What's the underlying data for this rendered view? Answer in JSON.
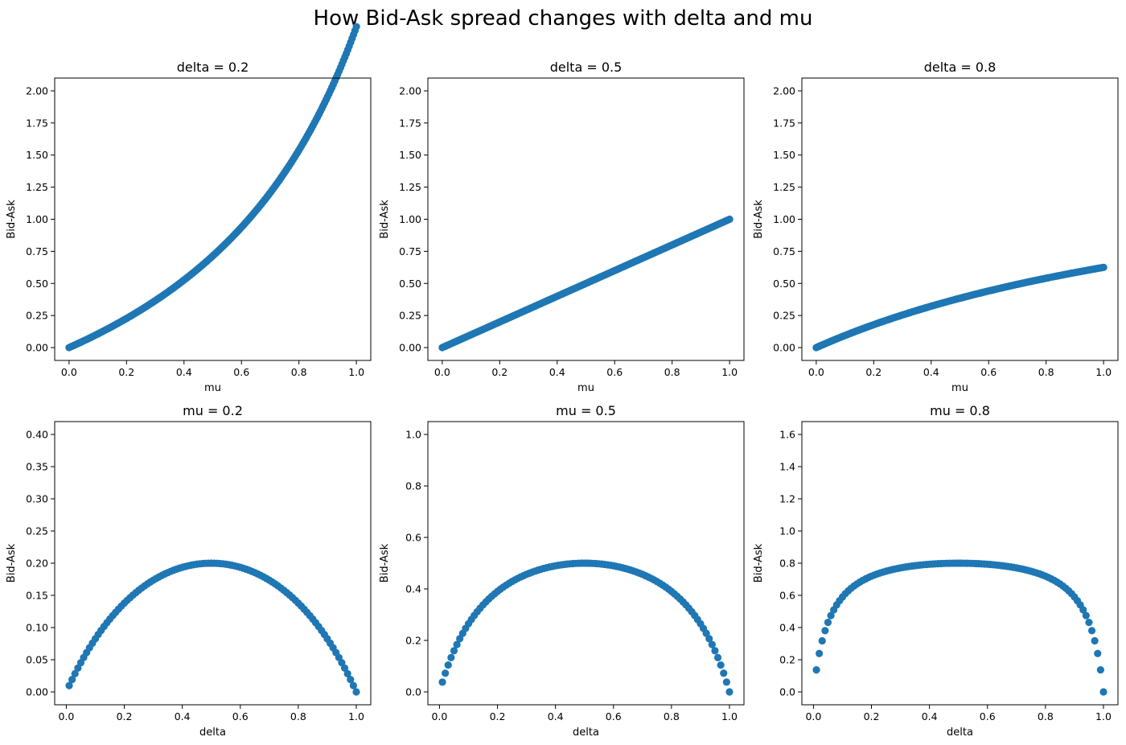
{
  "suptitle": "How Bid-Ask spread changes with delta and mu",
  "point_color": "#1f77b4",
  "chart_data": [
    {
      "type": "scatter",
      "title": "delta = 0.2",
      "xlabel": "mu",
      "ylabel": "Bid-Ask",
      "formula": "mu / (1 - mu*(1 - 2*delta))",
      "param": 0.2,
      "var": "mu",
      "x_range": [
        0,
        1
      ],
      "n_points": 200,
      "xlim": [
        -0.05,
        1.05
      ],
      "ylim": [
        -0.1,
        2.1
      ],
      "xticks": [
        0.0,
        0.2,
        0.4,
        0.6,
        0.8,
        1.0
      ],
      "xtick_labels": [
        "0.0",
        "0.2",
        "0.4",
        "0.6",
        "0.8",
        "1.0"
      ],
      "yticks": [
        0.0,
        0.25,
        0.5,
        0.75,
        1.0,
        1.25,
        1.5,
        1.75,
        2.0
      ],
      "ytick_labels": [
        "0.00",
        "0.25",
        "0.50",
        "0.75",
        "1.00",
        "1.25",
        "1.50",
        "1.75",
        "2.00"
      ]
    },
    {
      "type": "scatter",
      "title": "delta = 0.5",
      "xlabel": "mu",
      "ylabel": "Bid-Ask",
      "formula": "mu / (1 - mu*(1 - 2*delta))",
      "param": 0.5,
      "var": "mu",
      "x_range": [
        0,
        1
      ],
      "n_points": 200,
      "xlim": [
        -0.05,
        1.05
      ],
      "ylim": [
        -0.1,
        2.1
      ],
      "xticks": [
        0.0,
        0.2,
        0.4,
        0.6,
        0.8,
        1.0
      ],
      "xtick_labels": [
        "0.0",
        "0.2",
        "0.4",
        "0.6",
        "0.8",
        "1.0"
      ],
      "yticks": [
        0.0,
        0.25,
        0.5,
        0.75,
        1.0,
        1.25,
        1.5,
        1.75,
        2.0
      ],
      "ytick_labels": [
        "0.00",
        "0.25",
        "0.50",
        "0.75",
        "1.00",
        "1.25",
        "1.50",
        "1.75",
        "2.00"
      ]
    },
    {
      "type": "scatter",
      "title": "delta = 0.8",
      "xlabel": "mu",
      "ylabel": "Bid-Ask",
      "formula": "mu / (1 - mu*(1 - 2*delta))",
      "param": 0.8,
      "var": "mu",
      "x_range": [
        0,
        1
      ],
      "n_points": 200,
      "xlim": [
        -0.05,
        1.05
      ],
      "ylim": [
        -0.1,
        2.1
      ],
      "xticks": [
        0.0,
        0.2,
        0.4,
        0.6,
        0.8,
        1.0
      ],
      "xtick_labels": [
        "0.0",
        "0.2",
        "0.4",
        "0.6",
        "0.8",
        "1.0"
      ],
      "yticks": [
        0.0,
        0.25,
        0.5,
        0.75,
        1.0,
        1.25,
        1.5,
        1.75,
        2.0
      ],
      "ytick_labels": [
        "0.00",
        "0.25",
        "0.50",
        "0.75",
        "1.00",
        "1.25",
        "1.50",
        "1.75",
        "2.00"
      ]
    },
    {
      "type": "scatter",
      "title": "mu = 0.2",
      "xlabel": "delta",
      "ylabel": "Bid-Ask",
      "formula": "4*mu*delta*(1 - delta) / (1 - mu*(1 - 2*delta)^2)",
      "param": 0.2,
      "var": "delta",
      "x_range": [
        0.01,
        1.0
      ],
      "n_points": 100,
      "xlim": [
        -0.04,
        1.05
      ],
      "ylim": [
        -0.02,
        0.42
      ],
      "xticks": [
        0.0,
        0.2,
        0.4,
        0.6,
        0.8,
        1.0
      ],
      "xtick_labels": [
        "0.0",
        "0.2",
        "0.4",
        "0.6",
        "0.8",
        "1.0"
      ],
      "yticks": [
        0.0,
        0.05,
        0.1,
        0.15,
        0.2,
        0.25,
        0.3,
        0.35,
        0.4
      ],
      "ytick_labels": [
        "0.00",
        "0.05",
        "0.10",
        "0.15",
        "0.20",
        "0.25",
        "0.30",
        "0.35",
        "0.40"
      ]
    },
    {
      "type": "scatter",
      "title": "mu = 0.5",
      "xlabel": "delta",
      "ylabel": "Bid-Ask",
      "formula": "4*mu*delta*(1 - delta) / (1 - mu*(1 - 2*delta)^2)",
      "param": 0.5,
      "var": "delta",
      "x_range": [
        0.01,
        1.0
      ],
      "n_points": 100,
      "xlim": [
        -0.04,
        1.05
      ],
      "ylim": [
        -0.05,
        1.05
      ],
      "xticks": [
        0.0,
        0.2,
        0.4,
        0.6,
        0.8,
        1.0
      ],
      "xtick_labels": [
        "0.0",
        "0.2",
        "0.4",
        "0.6",
        "0.8",
        "1.0"
      ],
      "yticks": [
        0.0,
        0.2,
        0.4,
        0.6,
        0.8,
        1.0
      ],
      "ytick_labels": [
        "0.0",
        "0.2",
        "0.4",
        "0.6",
        "0.8",
        "1.0"
      ]
    },
    {
      "type": "scatter",
      "title": "mu = 0.8",
      "xlabel": "delta",
      "ylabel": "Bid-Ask",
      "formula": "4*mu*delta*(1 - delta) / (1 - mu*(1 - 2*delta)^2)",
      "param": 0.8,
      "var": "delta",
      "x_range": [
        0.01,
        1.0
      ],
      "n_points": 100,
      "xlim": [
        -0.04,
        1.05
      ],
      "ylim": [
        -0.08,
        1.68
      ],
      "xticks": [
        0.0,
        0.2,
        0.4,
        0.6,
        0.8,
        1.0
      ],
      "xtick_labels": [
        "0.0",
        "0.2",
        "0.4",
        "0.6",
        "0.8",
        "1.0"
      ],
      "yticks": [
        0.0,
        0.2,
        0.4,
        0.6,
        0.8,
        1.0,
        1.2,
        1.4,
        1.6
      ],
      "ytick_labels": [
        "0.0",
        "0.2",
        "0.4",
        "0.6",
        "0.8",
        "1.0",
        "1.2",
        "1.4",
        "1.6"
      ]
    }
  ]
}
